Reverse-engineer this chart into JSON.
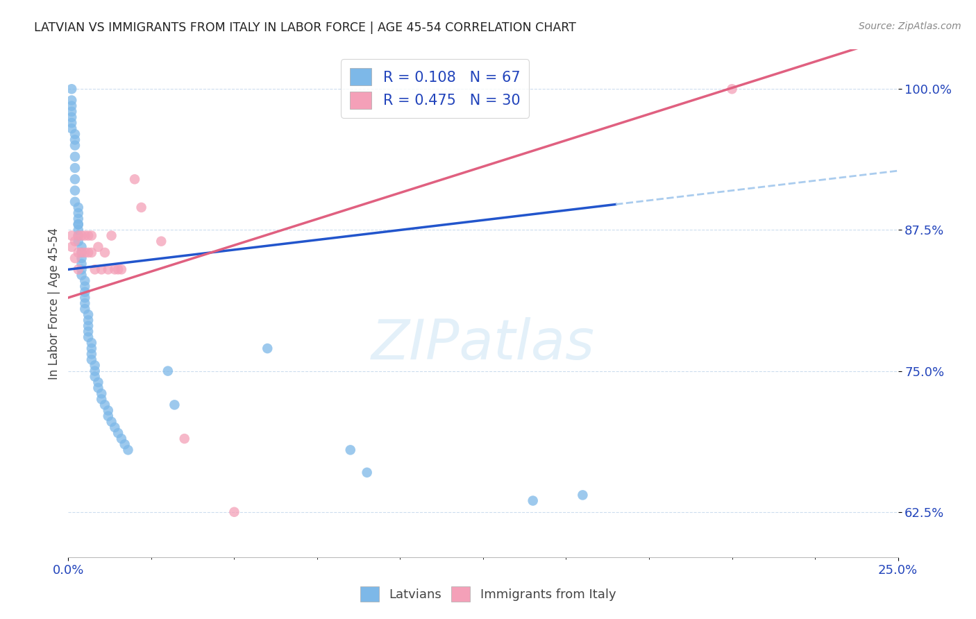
{
  "title": "LATVIAN VS IMMIGRANTS FROM ITALY IN LABOR FORCE | AGE 45-54 CORRELATION CHART",
  "source": "Source: ZipAtlas.com",
  "ylabel": "In Labor Force | Age 45-54",
  "x_min": 0.0,
  "x_max": 0.25,
  "y_min": 0.585,
  "y_max": 1.035,
  "y_ticks": [
    0.625,
    0.75,
    0.875,
    1.0
  ],
  "y_tick_labels": [
    "62.5%",
    "75.0%",
    "87.5%",
    "100.0%"
  ],
  "x_tick_labels": [
    "0.0%",
    "25.0%"
  ],
  "latvian_color": "#7db8e8",
  "italy_color": "#f4a0b8",
  "latvian_R": 0.108,
  "latvian_N": 67,
  "italy_R": 0.475,
  "italy_N": 30,
  "legend_text_color": "#2244bb",
  "latvian_line_color": "#2255cc",
  "italy_line_color": "#e06080",
  "dashed_color": "#aaccee",
  "latvian_x": [
    0.001,
    0.001,
    0.001,
    0.001,
    0.001,
    0.001,
    0.001,
    0.002,
    0.002,
    0.002,
    0.002,
    0.002,
    0.002,
    0.002,
    0.002,
    0.003,
    0.003,
    0.003,
    0.003,
    0.003,
    0.003,
    0.003,
    0.003,
    0.004,
    0.004,
    0.004,
    0.004,
    0.004,
    0.004,
    0.005,
    0.005,
    0.005,
    0.005,
    0.005,
    0.005,
    0.006,
    0.006,
    0.006,
    0.006,
    0.006,
    0.007,
    0.007,
    0.007,
    0.007,
    0.008,
    0.008,
    0.008,
    0.009,
    0.009,
    0.01,
    0.01,
    0.011,
    0.012,
    0.012,
    0.013,
    0.014,
    0.015,
    0.016,
    0.017,
    0.018,
    0.03,
    0.032,
    0.06,
    0.085,
    0.09,
    0.14,
    0.155
  ],
  "latvian_y": [
    1.0,
    0.99,
    0.985,
    0.98,
    0.975,
    0.97,
    0.965,
    0.96,
    0.955,
    0.95,
    0.94,
    0.93,
    0.92,
    0.91,
    0.9,
    0.895,
    0.89,
    0.885,
    0.88,
    0.88,
    0.875,
    0.87,
    0.865,
    0.86,
    0.855,
    0.85,
    0.845,
    0.84,
    0.835,
    0.83,
    0.825,
    0.82,
    0.815,
    0.81,
    0.805,
    0.8,
    0.795,
    0.79,
    0.785,
    0.78,
    0.775,
    0.77,
    0.765,
    0.76,
    0.755,
    0.75,
    0.745,
    0.74,
    0.735,
    0.73,
    0.725,
    0.72,
    0.715,
    0.71,
    0.705,
    0.7,
    0.695,
    0.69,
    0.685,
    0.68,
    0.75,
    0.72,
    0.77,
    0.68,
    0.66,
    0.635,
    0.64
  ],
  "italy_x": [
    0.001,
    0.001,
    0.002,
    0.002,
    0.003,
    0.003,
    0.003,
    0.004,
    0.004,
    0.005,
    0.005,
    0.006,
    0.006,
    0.007,
    0.007,
    0.008,
    0.009,
    0.01,
    0.011,
    0.012,
    0.013,
    0.014,
    0.015,
    0.016,
    0.02,
    0.022,
    0.028,
    0.035,
    0.05,
    0.2
  ],
  "italy_y": [
    0.87,
    0.86,
    0.865,
    0.85,
    0.87,
    0.855,
    0.84,
    0.87,
    0.855,
    0.87,
    0.855,
    0.87,
    0.855,
    0.87,
    0.855,
    0.84,
    0.86,
    0.84,
    0.855,
    0.84,
    0.87,
    0.84,
    0.84,
    0.84,
    0.92,
    0.895,
    0.865,
    0.69,
    0.625,
    1.0
  ]
}
